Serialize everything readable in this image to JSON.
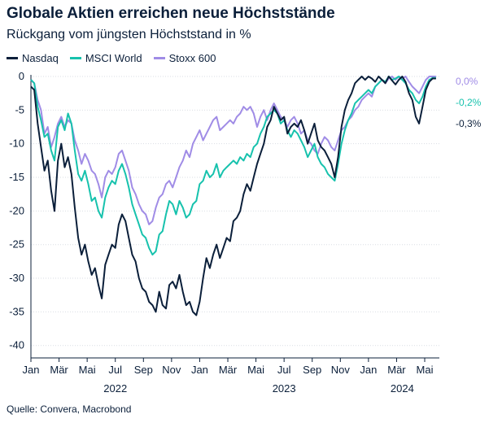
{
  "chart_data": {
    "type": "line",
    "title": "Globale Aktien erreichen neue Höchststände",
    "subtitle": "Rückgang vom jüngsten Höchststand in %",
    "source": "Quelle: Convera, Macrobond",
    "ylim": [
      -41,
      0
    ],
    "yticks": [
      0,
      -5,
      -10,
      -15,
      -20,
      -25,
      -30,
      -35,
      -40
    ],
    "ytick_labels": [
      "0",
      "-5",
      "-10",
      "-15",
      "-20",
      "-25",
      "-30",
      "-35",
      "-40"
    ],
    "x_range": [
      2022.0,
      2024.42
    ],
    "month_ticks": [
      {
        "label": "Jan",
        "x": 2022.0
      },
      {
        "label": "Mär",
        "x": 2022.1667
      },
      {
        "label": "Mai",
        "x": 2022.3333
      },
      {
        "label": "Jul",
        "x": 2022.5
      },
      {
        "label": "Sep",
        "x": 2022.6667
      },
      {
        "label": "Nov",
        "x": 2022.8333
      },
      {
        "label": "Jan",
        "x": 2023.0
      },
      {
        "label": "Mär",
        "x": 2023.1667
      },
      {
        "label": "Mai",
        "x": 2023.3333
      },
      {
        "label": "Jul",
        "x": 2023.5
      },
      {
        "label": "Sep",
        "x": 2023.6667
      },
      {
        "label": "Nov",
        "x": 2023.8333
      },
      {
        "label": "Jan",
        "x": 2024.0
      },
      {
        "label": "Mär",
        "x": 2024.1667
      },
      {
        "label": "Mai",
        "x": 2024.3333
      }
    ],
    "year_labels": [
      {
        "label": "2022",
        "x": 2022.5
      },
      {
        "label": "2023",
        "x": 2023.5
      },
      {
        "label": "2024",
        "x": 2024.2
      }
    ],
    "grid": true,
    "legend_position": "top-left",
    "series": [
      {
        "name": "Nasdaq",
        "color": "#0b1f3a",
        "end_label": "-0,3%",
        "x": [
          2022.0,
          2022.02,
          2022.04,
          2022.06,
          2022.08,
          2022.1,
          2022.12,
          2022.14,
          2022.16,
          2022.18,
          2022.2,
          2022.22,
          2022.24,
          2022.26,
          2022.28,
          2022.3,
          2022.32,
          2022.34,
          2022.36,
          2022.38,
          2022.4,
          2022.42,
          2022.44,
          2022.46,
          2022.48,
          2022.5,
          2022.52,
          2022.54,
          2022.56,
          2022.58,
          2022.6,
          2022.62,
          2022.64,
          2022.66,
          2022.68,
          2022.7,
          2022.72,
          2022.74,
          2022.76,
          2022.78,
          2022.8,
          2022.82,
          2022.84,
          2022.86,
          2022.88,
          2022.9,
          2022.92,
          2022.94,
          2022.96,
          2022.98,
          2023.0,
          2023.02,
          2023.04,
          2023.06,
          2023.08,
          2023.1,
          2023.12,
          2023.14,
          2023.16,
          2023.18,
          2023.2,
          2023.22,
          2023.24,
          2023.26,
          2023.28,
          2023.3,
          2023.32,
          2023.34,
          2023.36,
          2023.38,
          2023.4,
          2023.42,
          2023.44,
          2023.46,
          2023.48,
          2023.5,
          2023.52,
          2023.54,
          2023.56,
          2023.58,
          2023.6,
          2023.62,
          2023.64,
          2023.66,
          2023.68,
          2023.7,
          2023.72,
          2023.74,
          2023.76,
          2023.78,
          2023.8,
          2023.82,
          2023.84,
          2023.86,
          2023.88,
          2023.9,
          2023.92,
          2023.94,
          2023.96,
          2023.98,
          2024.0,
          2024.02,
          2024.04,
          2024.06,
          2024.08,
          2024.1,
          2024.12,
          2024.14,
          2024.16,
          2024.18,
          2024.2,
          2024.22,
          2024.24,
          2024.26,
          2024.28,
          2024.3,
          2024.32,
          2024.34,
          2024.36,
          2024.38,
          2024.4
        ],
        "y": [
          -1.5,
          -2.0,
          -7.0,
          -10.5,
          -14.0,
          -12.5,
          -17.0,
          -20.0,
          -12.5,
          -10.0,
          -13.5,
          -12.0,
          -14.5,
          -19.5,
          -24.0,
          -26.5,
          -25.0,
          -27.5,
          -29.5,
          -28.5,
          -31.0,
          -33.0,
          -28.0,
          -26.5,
          -25.0,
          -25.5,
          -22.0,
          -20.5,
          -21.5,
          -24.0,
          -26.5,
          -27.5,
          -30.0,
          -31.5,
          -32.0,
          -33.5,
          -34.0,
          -35.0,
          -32.0,
          -34.0,
          -34.5,
          -31.0,
          -30.5,
          -31.5,
          -29.5,
          -32.0,
          -34.0,
          -33.5,
          -35.0,
          -35.5,
          -33.5,
          -30.0,
          -27.0,
          -28.5,
          -26.5,
          -25.0,
          -27.0,
          -25.5,
          -24.0,
          -24.5,
          -21.5,
          -21.0,
          -20.0,
          -17.5,
          -16.0,
          -17.0,
          -15.0,
          -13.0,
          -11.5,
          -10.0,
          -7.5,
          -6.5,
          -4.5,
          -5.5,
          -6.5,
          -6.0,
          -8.5,
          -7.5,
          -7.0,
          -7.5,
          -6.5,
          -8.0,
          -10.0,
          -8.5,
          -7.0,
          -9.5,
          -10.5,
          -11.0,
          -12.0,
          -13.0,
          -15.0,
          -12.0,
          -7.5,
          -5.0,
          -3.5,
          -2.5,
          -1.0,
          -0.5,
          0.0,
          -0.5,
          0.0,
          -0.3,
          -0.8,
          0.0,
          -0.5,
          -1.0,
          0.0,
          -0.6,
          -1.2,
          -0.5,
          0.0,
          -0.8,
          -2.5,
          -3.5,
          -6.0,
          -7.0,
          -4.5,
          -2.0,
          -0.8,
          -0.3,
          -0.3
        ]
      },
      {
        "name": "MSCI World",
        "color": "#17c2ad",
        "end_label": "-0,2%",
        "x": [
          2022.0,
          2022.02,
          2022.04,
          2022.06,
          2022.08,
          2022.1,
          2022.12,
          2022.14,
          2022.16,
          2022.18,
          2022.2,
          2022.22,
          2022.24,
          2022.26,
          2022.28,
          2022.3,
          2022.32,
          2022.34,
          2022.36,
          2022.38,
          2022.4,
          2022.42,
          2022.44,
          2022.46,
          2022.48,
          2022.5,
          2022.52,
          2022.54,
          2022.56,
          2022.58,
          2022.6,
          2022.62,
          2022.64,
          2022.66,
          2022.68,
          2022.7,
          2022.72,
          2022.74,
          2022.76,
          2022.78,
          2022.8,
          2022.82,
          2022.84,
          2022.86,
          2022.88,
          2022.9,
          2022.92,
          2022.94,
          2022.96,
          2022.98,
          2023.0,
          2023.02,
          2023.04,
          2023.06,
          2023.08,
          2023.1,
          2023.12,
          2023.14,
          2023.16,
          2023.18,
          2023.2,
          2023.22,
          2023.24,
          2023.26,
          2023.28,
          2023.3,
          2023.32,
          2023.34,
          2023.36,
          2023.38,
          2023.4,
          2023.42,
          2023.44,
          2023.46,
          2023.48,
          2023.5,
          2023.52,
          2023.54,
          2023.56,
          2023.58,
          2023.6,
          2023.62,
          2023.64,
          2023.66,
          2023.68,
          2023.7,
          2023.72,
          2023.74,
          2023.76,
          2023.78,
          2023.8,
          2023.82,
          2023.84,
          2023.86,
          2023.88,
          2023.9,
          2023.92,
          2023.94,
          2023.96,
          2023.98,
          2024.0,
          2024.02,
          2024.04,
          2024.06,
          2024.08,
          2024.1,
          2024.12,
          2024.14,
          2024.16,
          2024.18,
          2024.2,
          2024.22,
          2024.24,
          2024.26,
          2024.28,
          2024.3,
          2024.32,
          2024.34,
          2024.36,
          2024.38,
          2024.4
        ],
        "y": [
          -0.5,
          -1.0,
          -4.5,
          -6.5,
          -9.0,
          -8.5,
          -11.0,
          -12.5,
          -7.5,
          -6.5,
          -8.0,
          -5.5,
          -7.0,
          -11.0,
          -14.5,
          -15.5,
          -14.0,
          -16.0,
          -18.5,
          -18.0,
          -20.0,
          -21.0,
          -18.0,
          -16.5,
          -15.5,
          -16.0,
          -14.0,
          -13.0,
          -14.5,
          -16.5,
          -19.0,
          -20.5,
          -22.0,
          -23.5,
          -24.0,
          -25.5,
          -26.5,
          -26.0,
          -23.5,
          -23.0,
          -20.5,
          -18.5,
          -19.0,
          -20.5,
          -18.5,
          -19.5,
          -21.0,
          -20.5,
          -19.0,
          -18.5,
          -16.0,
          -15.5,
          -14.0,
          -15.0,
          -14.5,
          -13.0,
          -15.0,
          -14.0,
          -13.5,
          -13.0,
          -12.5,
          -13.0,
          -12.0,
          -12.5,
          -11.5,
          -12.0,
          -10.5,
          -10.0,
          -8.5,
          -7.5,
          -6.0,
          -5.5,
          -5.0,
          -5.5,
          -7.0,
          -6.5,
          -8.0,
          -9.0,
          -8.0,
          -8.5,
          -9.5,
          -10.5,
          -12.0,
          -11.0,
          -10.0,
          -12.0,
          -13.0,
          -13.5,
          -14.5,
          -15.0,
          -15.5,
          -13.0,
          -10.0,
          -8.0,
          -6.5,
          -5.5,
          -4.0,
          -3.5,
          -3.0,
          -2.5,
          -2.0,
          -2.5,
          -1.5,
          -1.0,
          -0.5,
          -0.8,
          0.0,
          -0.5,
          -0.3,
          0.0,
          -0.5,
          -1.0,
          -2.0,
          -2.5,
          -3.5,
          -4.0,
          -3.0,
          -1.5,
          -0.5,
          -0.2,
          -0.2
        ]
      },
      {
        "name": "Stoxx 600",
        "color": "#a08ce6",
        "end_label": "0,0%",
        "x": [
          2022.0,
          2022.02,
          2022.04,
          2022.06,
          2022.08,
          2022.1,
          2022.12,
          2022.14,
          2022.16,
          2022.18,
          2022.2,
          2022.22,
          2022.24,
          2022.26,
          2022.28,
          2022.3,
          2022.32,
          2022.34,
          2022.36,
          2022.38,
          2022.4,
          2022.42,
          2022.44,
          2022.46,
          2022.48,
          2022.5,
          2022.52,
          2022.54,
          2022.56,
          2022.58,
          2022.6,
          2022.62,
          2022.64,
          2022.66,
          2022.68,
          2022.7,
          2022.72,
          2022.74,
          2022.76,
          2022.78,
          2022.8,
          2022.82,
          2022.84,
          2022.86,
          2022.88,
          2022.9,
          2022.92,
          2022.94,
          2022.96,
          2022.98,
          2023.0,
          2023.02,
          2023.04,
          2023.06,
          2023.08,
          2023.1,
          2023.12,
          2023.14,
          2023.16,
          2023.18,
          2023.2,
          2023.22,
          2023.24,
          2023.26,
          2023.28,
          2023.3,
          2023.32,
          2023.34,
          2023.36,
          2023.38,
          2023.4,
          2023.42,
          2023.44,
          2023.46,
          2023.48,
          2023.5,
          2023.52,
          2023.54,
          2023.56,
          2023.58,
          2023.6,
          2023.62,
          2023.64,
          2023.66,
          2023.68,
          2023.7,
          2023.72,
          2023.74,
          2023.76,
          2023.78,
          2023.8,
          2023.82,
          2023.84,
          2023.86,
          2023.88,
          2023.9,
          2023.92,
          2023.94,
          2023.96,
          2023.98,
          2024.0,
          2024.02,
          2024.04,
          2024.06,
          2024.08,
          2024.1,
          2024.12,
          2024.14,
          2024.16,
          2024.18,
          2024.2,
          2024.22,
          2024.24,
          2024.26,
          2024.28,
          2024.3,
          2024.32,
          2024.34,
          2024.36,
          2024.38,
          2024.4
        ],
        "y": [
          -0.5,
          -1.0,
          -3.5,
          -5.0,
          -8.5,
          -7.5,
          -10.5,
          -9.0,
          -7.0,
          -6.0,
          -7.5,
          -6.5,
          -7.0,
          -9.5,
          -11.0,
          -13.0,
          -11.5,
          -12.5,
          -14.0,
          -14.5,
          -16.0,
          -18.0,
          -15.0,
          -14.0,
          -14.5,
          -13.5,
          -11.5,
          -11.0,
          -12.5,
          -14.0,
          -16.5,
          -17.5,
          -19.0,
          -20.0,
          -20.5,
          -22.0,
          -21.5,
          -19.5,
          -18.0,
          -17.5,
          -16.0,
          -15.5,
          -16.5,
          -15.0,
          -13.5,
          -12.5,
          -11.0,
          -12.0,
          -10.0,
          -9.0,
          -8.0,
          -9.5,
          -8.5,
          -7.5,
          -6.5,
          -6.0,
          -8.0,
          -7.5,
          -7.0,
          -6.5,
          -7.0,
          -6.0,
          -5.5,
          -4.5,
          -5.0,
          -4.5,
          -5.5,
          -7.5,
          -6.0,
          -5.0,
          -6.5,
          -5.0,
          -4.0,
          -5.0,
          -6.0,
          -6.5,
          -7.5,
          -6.5,
          -6.0,
          -7.0,
          -8.5,
          -8.0,
          -9.5,
          -10.0,
          -11.0,
          -11.5,
          -10.0,
          -9.0,
          -9.5,
          -10.5,
          -11.0,
          -9.5,
          -8.0,
          -7.5,
          -6.5,
          -6.0,
          -5.0,
          -4.5,
          -3.5,
          -3.0,
          -2.5,
          -3.0,
          -1.5,
          -1.0,
          -0.5,
          -1.0,
          -0.3,
          0.0,
          -0.5,
          0.0,
          -0.3,
          0.0,
          -0.8,
          -1.5,
          -2.0,
          -2.5,
          -1.5,
          -0.5,
          0.0,
          0.0,
          0.0
        ]
      }
    ]
  }
}
